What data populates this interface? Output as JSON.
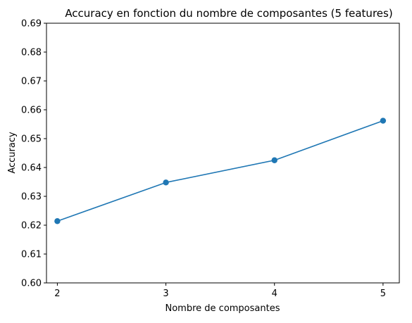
{
  "chart_data": {
    "type": "line",
    "title": "Accuracy en fonction du nombre de composantes (5 features)",
    "xlabel": "Nombre de composantes",
    "ylabel": "Accuracy",
    "x": [
      2,
      3,
      4,
      5
    ],
    "series": [
      {
        "values": [
          0.6214,
          0.6348,
          0.6425,
          0.6562
        ],
        "color": "#1f77b4",
        "marker": "circle"
      }
    ],
    "xticks": [
      "2",
      "3",
      "4",
      "5"
    ],
    "yticks": [
      "0.60",
      "0.61",
      "0.62",
      "0.63",
      "0.64",
      "0.65",
      "0.66",
      "0.67",
      "0.68",
      "0.69"
    ],
    "xlim": [
      1.9,
      5.15
    ],
    "ylim": [
      0.6,
      0.69
    ],
    "grid": false,
    "legend": "none"
  }
}
